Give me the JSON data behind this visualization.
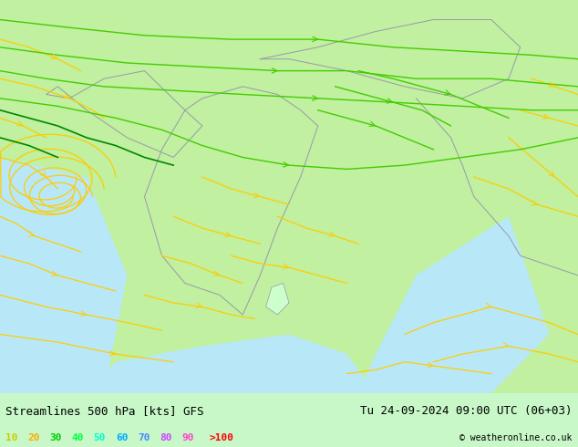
{
  "title_left": "Streamlines 500 hPa [kts] GFS",
  "title_right": "Tu 24-09-2024 09:00 UTC (06+03)",
  "copyright": "© weatheronline.co.uk",
  "legend_values": [
    "10",
    "20",
    "30",
    "40",
    "50",
    "60",
    "70",
    "80",
    "90",
    ">100"
  ],
  "legend_colors": [
    "#ffff00",
    "#ffcc00",
    "#00cc00",
    "#00ff00",
    "#00ffcc",
    "#00ccff",
    "#0066ff",
    "#cc00ff",
    "#ff00cc",
    "#ff0000"
  ],
  "bg_color": "#aaffaa",
  "land_color": "#ccffcc",
  "sea_color": "#aaddff",
  "streamline_colors": {
    "slow": "#ffcc00",
    "medium": "#00cc00",
    "fast": "#006600"
  },
  "figsize": [
    6.34,
    4.9
  ],
  "dpi": 100,
  "map_bg": "#b8f0b8",
  "title_fontsize": 9,
  "legend_fontsize": 8,
  "copyright_fontsize": 7
}
